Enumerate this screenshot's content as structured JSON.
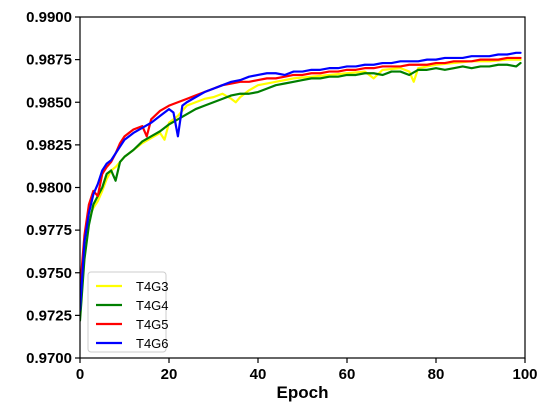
{
  "chart_data": {
    "type": "line",
    "title": "",
    "xlabel": "Epoch",
    "ylabel": "",
    "xlim": [
      0,
      100
    ],
    "ylim": [
      0.97,
      0.99
    ],
    "x_ticks": [
      0,
      20,
      40,
      60,
      80,
      100
    ],
    "y_ticks": [
      0.97,
      0.9725,
      0.975,
      0.9775,
      0.98,
      0.9825,
      0.985,
      0.9875,
      0.99
    ],
    "x_tick_labels": [
      "0",
      "20",
      "40",
      "60",
      "80",
      "100"
    ],
    "y_tick_labels": [
      "0.9700",
      "0.9725",
      "0.9750",
      "0.9775",
      "0.9800",
      "0.9825",
      "0.9850",
      "0.9875",
      "0.9900"
    ],
    "grid": false,
    "legend_position": "bottom-left",
    "series": [
      {
        "name": "T4G3",
        "color": "#ffff00",
        "x": [
          0,
          1,
          2,
          3,
          4,
          5,
          6,
          7,
          8,
          10,
          12,
          14,
          16,
          18,
          19,
          20,
          22,
          24,
          26,
          28,
          30,
          32,
          34,
          35,
          36,
          38,
          40,
          44,
          48,
          52,
          56,
          60,
          64,
          66,
          68,
          72,
          74,
          75,
          76,
          78,
          80,
          84,
          88,
          92,
          96,
          99
        ],
        "y": [
          0.9728,
          0.9762,
          0.9782,
          0.9788,
          0.9792,
          0.9798,
          0.9805,
          0.981,
          0.9812,
          0.9818,
          0.9822,
          0.9826,
          0.9829,
          0.9832,
          0.9828,
          0.9838,
          0.9842,
          0.9848,
          0.985,
          0.9852,
          0.9853,
          0.9855,
          0.9852,
          0.985,
          0.9853,
          0.9857,
          0.986,
          0.9862,
          0.9864,
          0.9865,
          0.9866,
          0.9867,
          0.9868,
          0.9864,
          0.9869,
          0.987,
          0.9868,
          0.9862,
          0.987,
          0.9871,
          0.9872,
          0.9873,
          0.9874,
          0.9874,
          0.9875,
          0.9875
        ]
      },
      {
        "name": "T4G4",
        "color": "#007f00",
        "x": [
          0,
          1,
          2,
          3,
          4,
          5,
          6,
          7,
          8,
          9,
          10,
          12,
          14,
          16,
          18,
          20,
          22,
          24,
          26,
          28,
          30,
          32,
          34,
          36,
          38,
          40,
          42,
          44,
          46,
          48,
          50,
          52,
          54,
          56,
          58,
          60,
          62,
          64,
          66,
          68,
          70,
          72,
          74,
          76,
          78,
          80,
          82,
          84,
          86,
          88,
          90,
          92,
          94,
          96,
          98,
          99
        ],
        "y": [
          0.9722,
          0.9758,
          0.9778,
          0.979,
          0.9795,
          0.98,
          0.9808,
          0.981,
          0.9804,
          0.9815,
          0.9818,
          0.9822,
          0.9827,
          0.983,
          0.9833,
          0.9837,
          0.984,
          0.9843,
          0.9846,
          0.9848,
          0.985,
          0.9852,
          0.9854,
          0.9855,
          0.9855,
          0.9856,
          0.9858,
          0.986,
          0.9861,
          0.9862,
          0.9863,
          0.9864,
          0.9864,
          0.9865,
          0.9865,
          0.9866,
          0.9866,
          0.9867,
          0.9867,
          0.9866,
          0.9868,
          0.9868,
          0.9866,
          0.9869,
          0.9869,
          0.987,
          0.9869,
          0.987,
          0.9871,
          0.987,
          0.9871,
          0.9871,
          0.9872,
          0.9872,
          0.9871,
          0.9873
        ]
      },
      {
        "name": "T4G5",
        "color": "#ff0000",
        "x": [
          0,
          1,
          2,
          3,
          4,
          5,
          6,
          7,
          8,
          9,
          10,
          12,
          14,
          15,
          16,
          18,
          20,
          22,
          24,
          26,
          28,
          30,
          32,
          34,
          36,
          38,
          40,
          42,
          44,
          46,
          48,
          50,
          52,
          54,
          56,
          58,
          60,
          62,
          64,
          66,
          68,
          70,
          72,
          74,
          76,
          78,
          80,
          82,
          84,
          86,
          88,
          90,
          92,
          94,
          96,
          98,
          99
        ],
        "y": [
          0.974,
          0.9772,
          0.979,
          0.9798,
          0.9795,
          0.9808,
          0.9812,
          0.9815,
          0.982,
          0.9826,
          0.983,
          0.9834,
          0.9836,
          0.983,
          0.984,
          0.9845,
          0.9848,
          0.985,
          0.9852,
          0.9854,
          0.9856,
          0.9858,
          0.986,
          0.9861,
          0.9862,
          0.9862,
          0.9863,
          0.9864,
          0.9864,
          0.9865,
          0.9866,
          0.9866,
          0.9867,
          0.9867,
          0.9868,
          0.9868,
          0.9869,
          0.9869,
          0.987,
          0.987,
          0.9871,
          0.9871,
          0.9871,
          0.9872,
          0.9872,
          0.9872,
          0.9873,
          0.9873,
          0.9874,
          0.9874,
          0.9874,
          0.9875,
          0.9875,
          0.9875,
          0.9876,
          0.9876,
          0.9876
        ]
      },
      {
        "name": "T4G6",
        "color": "#0000ff",
        "x": [
          0,
          1,
          2,
          3,
          4,
          5,
          6,
          7,
          8,
          9,
          10,
          12,
          14,
          16,
          18,
          20,
          21,
          22,
          23,
          24,
          26,
          28,
          30,
          32,
          34,
          36,
          38,
          40,
          42,
          44,
          46,
          48,
          50,
          52,
          54,
          56,
          58,
          60,
          62,
          64,
          66,
          68,
          70,
          72,
          74,
          76,
          78,
          80,
          82,
          84,
          86,
          88,
          90,
          92,
          94,
          96,
          98,
          99
        ],
        "y": [
          0.9728,
          0.9768,
          0.9785,
          0.9796,
          0.9802,
          0.981,
          0.9814,
          0.9816,
          0.982,
          0.9824,
          0.9828,
          0.9832,
          0.9835,
          0.9838,
          0.9842,
          0.9846,
          0.9844,
          0.983,
          0.9848,
          0.985,
          0.9853,
          0.9856,
          0.9858,
          0.986,
          0.9862,
          0.9863,
          0.9865,
          0.9866,
          0.9867,
          0.9867,
          0.9866,
          0.9868,
          0.9868,
          0.9869,
          0.9869,
          0.987,
          0.987,
          0.9871,
          0.9871,
          0.9872,
          0.9872,
          0.9873,
          0.9873,
          0.9874,
          0.9874,
          0.9874,
          0.9875,
          0.9875,
          0.9876,
          0.9876,
          0.9876,
          0.9877,
          0.9877,
          0.9877,
          0.9878,
          0.9878,
          0.9879,
          0.9879
        ]
      }
    ]
  }
}
